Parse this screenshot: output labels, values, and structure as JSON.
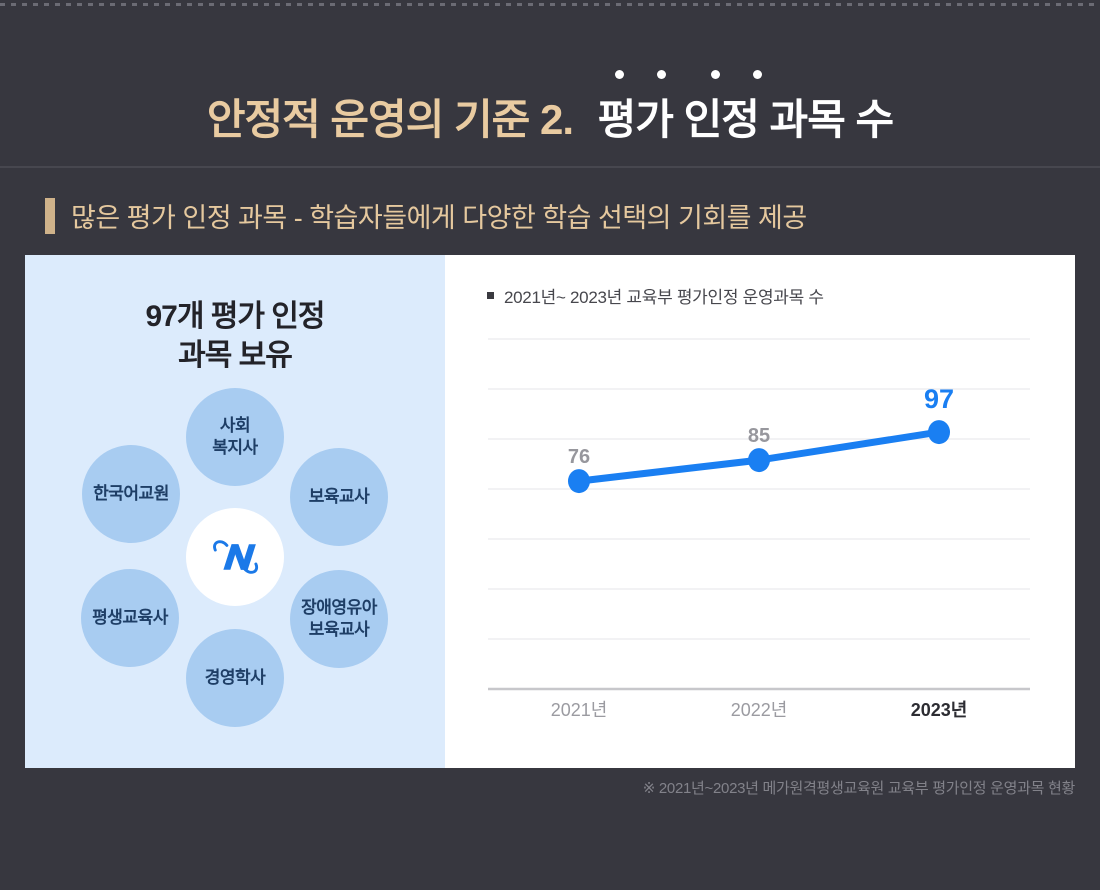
{
  "header": {
    "title_tan": "안정적 운영의 기준 2.",
    "title_white": "평가 인정 과목 수",
    "subtitle": "많은 평가 인정 과목 - 학습자들에게 다양한 학습 선택의 기회를 제공"
  },
  "left_panel": {
    "heading_line1": "97개 평가 인정",
    "heading_line2": "과목 보유",
    "center_logo": "mega-logo",
    "subjects": [
      {
        "label": "사회\n복지사"
      },
      {
        "label": "한국어교원"
      },
      {
        "label": "보육교사"
      },
      {
        "label": "평생교육사"
      },
      {
        "label": "장애영유아\n보육교사"
      },
      {
        "label": "경영학사"
      }
    ]
  },
  "chart_data": {
    "type": "line",
    "title": "2021년~ 2023년 교육부 평가인정 운영과목 수",
    "categories": [
      "2021년",
      "2022년",
      "2023년"
    ],
    "values": [
      76,
      85,
      97
    ],
    "grid": true,
    "gridline_count": 7,
    "legend_position": "top-left",
    "line_color": "#1a7ff2",
    "point_color": "#1a7ff2",
    "value_label_color": "#97979d",
    "last_value_label_color": "#1a7ff2",
    "x_label_color": "#9b9ba1",
    "last_x_label_color": "#2c2c32"
  },
  "footnote": "※ 2021년~2023년 메가원격평생교육원 교육부 평가인정 운영과목 현황",
  "colors": {
    "background": "#37373f",
    "accent_tan": "#e9cba1",
    "panel_blue": "#dcebfc",
    "circle_blue": "#a8ccf1",
    "circle_text": "#1e3e66",
    "chart_blue": "#1a7ff2"
  }
}
